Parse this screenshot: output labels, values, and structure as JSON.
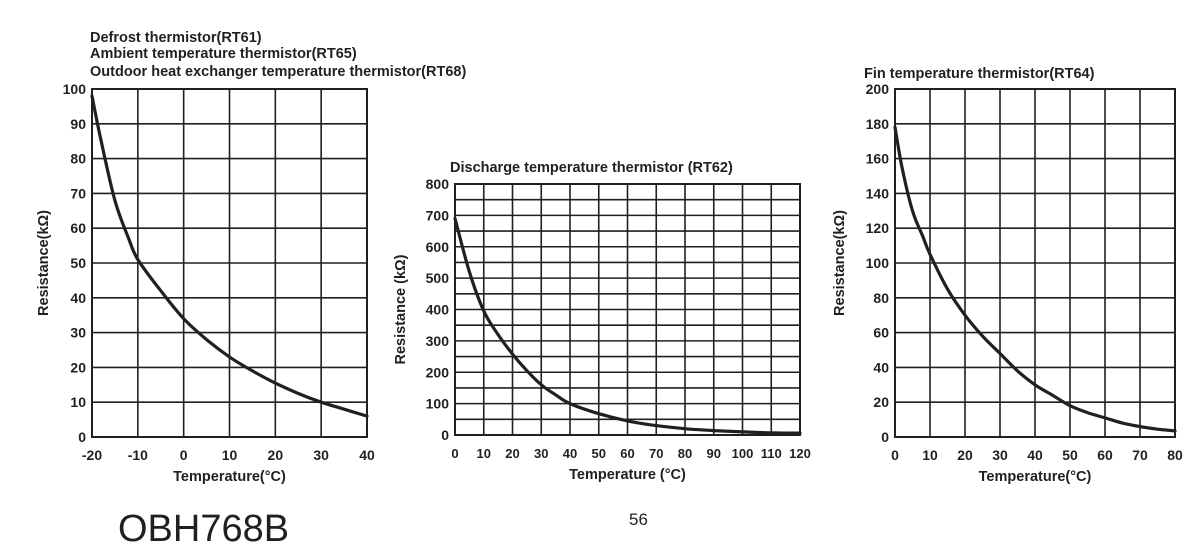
{
  "chart_data": [
    {
      "type": "line",
      "title_lines": [
        "Defrost thermistor(RT61)",
        "Ambient temperature thermistor(RT65)",
        "Outdoor heat exchanger temperature thermistor(RT68)"
      ],
      "xlabel": "Temperature(°C)",
      "ylabel": "Resistance(kΩ)",
      "xlim": [
        -20,
        40
      ],
      "ylim": [
        0,
        100
      ],
      "x_ticks": [
        -20,
        -10,
        0,
        10,
        20,
        30,
        40
      ],
      "y_ticks": [
        0,
        10,
        20,
        30,
        40,
        50,
        60,
        70,
        80,
        90,
        100
      ],
      "x_grid_step": 10,
      "y_grid_step": 10,
      "grid": true,
      "series": [
        {
          "x": [
            -20,
            -18,
            -15,
            -12,
            -10,
            -5,
            0,
            5,
            10,
            15,
            20,
            25,
            30,
            35,
            40
          ],
          "y": [
            98,
            85,
            68,
            57,
            51,
            42,
            34,
            28,
            23,
            19,
            15.5,
            12.5,
            10,
            8,
            6
          ]
        }
      ]
    },
    {
      "type": "line",
      "title_lines": [
        "Discharge temperature thermistor (RT62)"
      ],
      "xlabel": "Temperature (°C)",
      "ylabel": "Resistance (kΩ)",
      "xlim": [
        0,
        120
      ],
      "ylim": [
        0,
        800
      ],
      "x_ticks": [
        0,
        10,
        20,
        30,
        40,
        50,
        60,
        70,
        80,
        90,
        100,
        110,
        120
      ],
      "y_ticks": [
        0,
        100,
        200,
        300,
        400,
        500,
        600,
        700,
        800
      ],
      "x_grid_step": 10,
      "y_grid_step": 50,
      "grid": true,
      "series": [
        {
          "x": [
            0,
            5,
            10,
            15,
            20,
            25,
            30,
            35,
            40,
            50,
            60,
            70,
            80,
            90,
            100,
            110,
            120
          ],
          "y": [
            690,
            520,
            395,
            320,
            258,
            205,
            160,
            128,
            100,
            68,
            45,
            30,
            20,
            14,
            10,
            7,
            6
          ]
        }
      ]
    },
    {
      "type": "line",
      "title_lines": [
        "Fin temperature thermistor(RT64)"
      ],
      "xlabel": "Temperature(°C)",
      "ylabel": "Resistance(kΩ)",
      "xlim": [
        0,
        80
      ],
      "ylim": [
        0,
        200
      ],
      "x_ticks": [
        0,
        10,
        20,
        30,
        40,
        50,
        60,
        70,
        80
      ],
      "y_ticks": [
        0,
        20,
        40,
        60,
        80,
        100,
        120,
        140,
        160,
        180,
        200
      ],
      "x_grid_step": 10,
      "y_grid_step": 20,
      "grid": true,
      "series": [
        {
          "x": [
            0,
            2,
            5,
            8,
            10,
            15,
            20,
            25,
            30,
            35,
            40,
            45,
            50,
            55,
            60,
            65,
            70,
            75,
            80
          ],
          "y": [
            178,
            155,
            130,
            115,
            105,
            85,
            70,
            58,
            48,
            38,
            30,
            24,
            18,
            14,
            11,
            8,
            6,
            4.5,
            3.5
          ]
        }
      ]
    }
  ],
  "footer": {
    "document_code": "OBH768B",
    "page_number": "56"
  }
}
